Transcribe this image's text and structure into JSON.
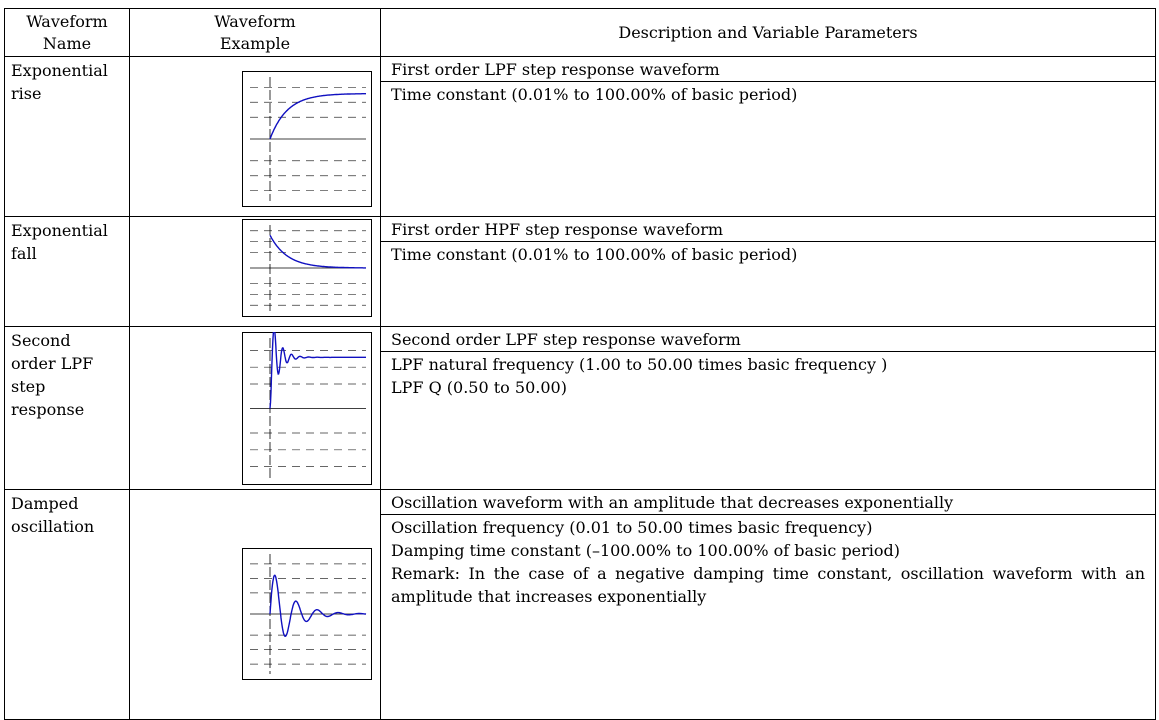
{
  "table": {
    "header": [
      "Waveform Name",
      "Waveform Example",
      "Description and Variable Parameters"
    ],
    "header_lines": [
      [
        "Waveform",
        "Name"
      ],
      [
        "Waveform",
        "Example"
      ]
    ],
    "rows": [
      {
        "name": [
          "Exponential",
          "rise"
        ],
        "description": "First order LPF step response waveform",
        "parameters": [
          "Time constant (0.01% to 100.00% of basic period)"
        ]
      },
      {
        "name": [
          "Exponential",
          "fall"
        ],
        "description": "First order HPF step response waveform",
        "parameters": [
          "Time constant (0.01% to 100.00% of basic period)"
        ]
      },
      {
        "name": [
          "Second",
          "order LPF",
          "step",
          "response"
        ],
        "description": "Second order LPF step response waveform",
        "parameters": [
          "LPF natural frequency (1.00 to 50.00 times basic frequency )",
          "LPF Q (0.50 to 50.00)"
        ]
      },
      {
        "name": [
          "Damped",
          "oscillation"
        ],
        "description": "Oscillation waveform with an amplitude that decreases exponentially",
        "parameters": [
          "Oscillation frequency (0.01 to 50.00 times basic frequency)",
          "Damping time constant (–100.00% to 100.00% of basic period)",
          "Remark: In the case of a negative damping time constant, oscillation waveform with an amplitude that increases exponentially"
        ]
      }
    ]
  }
}
